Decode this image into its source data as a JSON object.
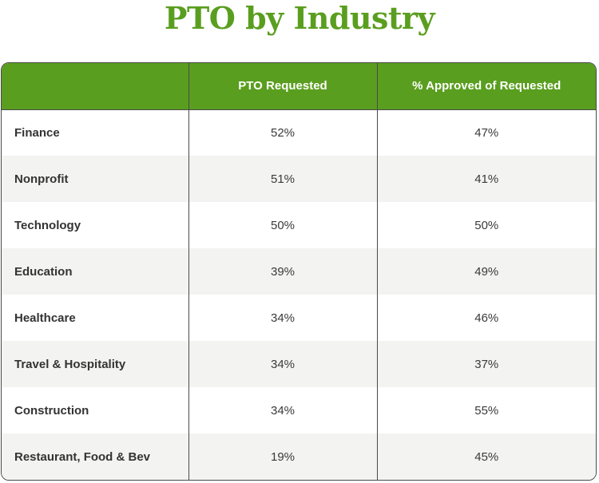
{
  "colors": {
    "accent": "#5a9e1f",
    "border": "#4a4a4a",
    "stripe": "#f3f3f1"
  },
  "chart_data": {
    "type": "table",
    "title": "PTO by Industry",
    "columns": [
      "",
      "PTO Requested",
      "% Approved of Requested"
    ],
    "rows": [
      {
        "industry": "Finance",
        "pto_requested": "52%",
        "approved": "47%"
      },
      {
        "industry": "Nonprofit",
        "pto_requested": "51%",
        "approved": "41%"
      },
      {
        "industry": "Technology",
        "pto_requested": "50%",
        "approved": "50%"
      },
      {
        "industry": "Education",
        "pto_requested": "39%",
        "approved": "49%"
      },
      {
        "industry": "Healthcare",
        "pto_requested": "34%",
        "approved": "46%"
      },
      {
        "industry": "Travel & Hospitality",
        "pto_requested": "34%",
        "approved": "37%"
      },
      {
        "industry": "Construction",
        "pto_requested": "34%",
        "approved": "55%"
      },
      {
        "industry": "Restaurant, Food & Bev",
        "pto_requested": "19%",
        "approved": "45%"
      }
    ]
  }
}
